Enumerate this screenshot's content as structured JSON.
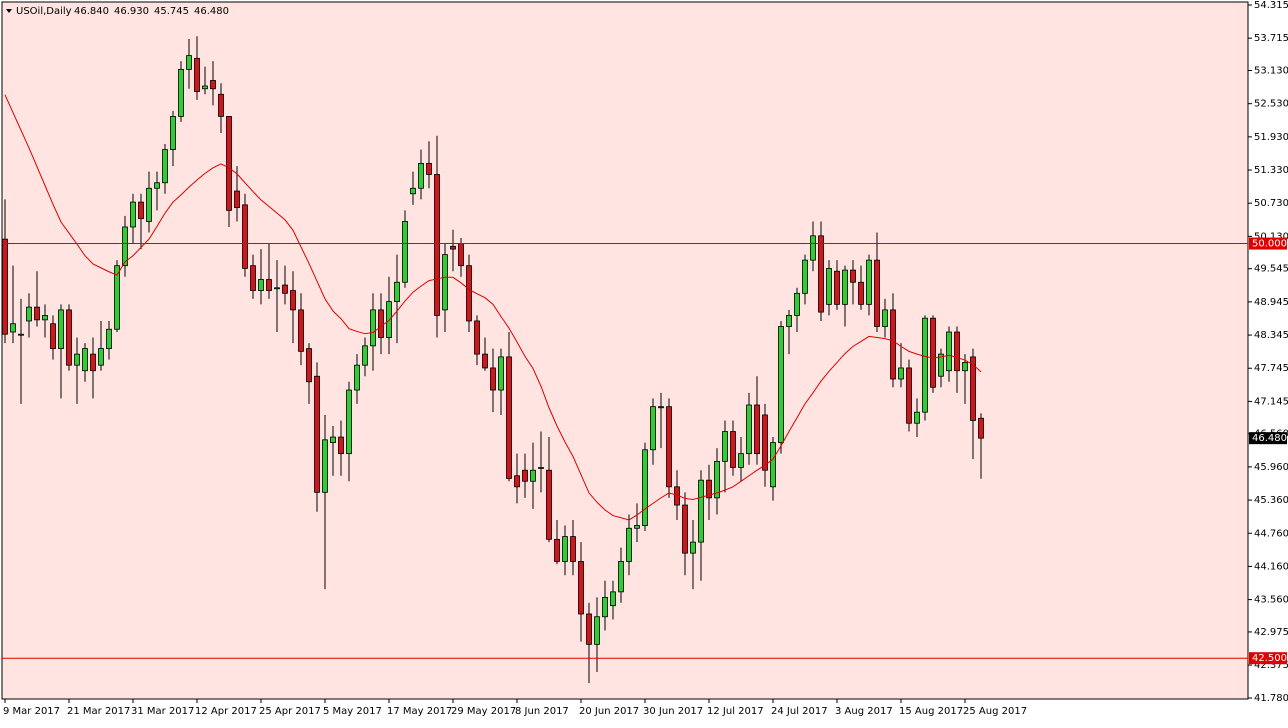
{
  "chart_data": {
    "type": "candlestick",
    "title": "USOil,Daily",
    "header_values": [
      "46.840",
      "46.930",
      "45.745",
      "46.480"
    ],
    "background": "#ffe4e1",
    "bull_color": "#32cd32",
    "bear_color": "#d0161b",
    "ylim": [
      41.78,
      54.315
    ],
    "yticks": [
      {
        "value": 54.315,
        "label": "54.315"
      },
      {
        "value": 53.715,
        "label": "53.715"
      },
      {
        "value": 53.13,
        "label": "53.130"
      },
      {
        "value": 52.53,
        "label": "52.530"
      },
      {
        "value": 51.93,
        "label": "51.930"
      },
      {
        "value": 51.33,
        "label": "51.330"
      },
      {
        "value": 50.73,
        "label": "50.730"
      },
      {
        "value": 50.13,
        "label": "50.130"
      },
      {
        "value": 49.545,
        "label": "49.545"
      },
      {
        "value": 48.945,
        "label": "48.945"
      },
      {
        "value": 48.345,
        "label": "48.345"
      },
      {
        "value": 47.745,
        "label": "47.745"
      },
      {
        "value": 47.145,
        "label": "47.145"
      },
      {
        "value": 46.56,
        "label": "46.560"
      },
      {
        "value": 45.96,
        "label": "45.960"
      },
      {
        "value": 45.36,
        "label": "45.360"
      },
      {
        "value": 44.76,
        "label": "44.760"
      },
      {
        "value": 44.16,
        "label": "44.160"
      },
      {
        "value": 43.56,
        "label": "43.560"
      },
      {
        "value": 42.975,
        "label": "42.975"
      },
      {
        "value": 42.375,
        "label": "42.375"
      },
      {
        "value": 41.78,
        "label": "41.780"
      }
    ],
    "levels": [
      {
        "value": 50,
        "label": "50.000",
        "color": "#e00000"
      },
      {
        "value": 42.5,
        "label": "42.500",
        "color": "#e00000"
      }
    ],
    "last_price": {
      "value": 46.48,
      "label": "46.480"
    },
    "categories": [
      "9 Mar 2017",
      null,
      null,
      null,
      null,
      null,
      null,
      null,
      "21 Mar 2017",
      null,
      null,
      null,
      null,
      null,
      null,
      null,
      "31 Mar 2017",
      null,
      null,
      null,
      null,
      null,
      null,
      null,
      "12 Apr 2017",
      null,
      null,
      null,
      null,
      null,
      null,
      null,
      "25 Apr 2017",
      null,
      null,
      null,
      null,
      null,
      null,
      null,
      "5 May 2017",
      null,
      null,
      null,
      null,
      null,
      null,
      null,
      "17 May 2017",
      null,
      null,
      null,
      null,
      null,
      null,
      null,
      "29 May 2017",
      null,
      null,
      null,
      null,
      null,
      null,
      null,
      "8 Jun 2017",
      null,
      null,
      null,
      null,
      null,
      null,
      null,
      "20 Jun 2017",
      null,
      null,
      null,
      null,
      null,
      null,
      null,
      "30 Jun 2017",
      null,
      null,
      null,
      null,
      null,
      null,
      null,
      "12 Jul 2017",
      null,
      null,
      null,
      null,
      null,
      null,
      null,
      "24 Jul 2017",
      null,
      null,
      null,
      null,
      null,
      null,
      null,
      "3 Aug 2017",
      null,
      null,
      null,
      null,
      null,
      null,
      null,
      "15 Aug 2017",
      null,
      null,
      null,
      null,
      null,
      null,
      null,
      "25 Aug 2017",
      null,
      null
    ],
    "open": [
      50.08,
      48.4,
      48.36,
      48.6,
      48.85,
      48.62,
      48.55,
      48.1,
      48.8,
      47.8,
      47.7,
      48.0,
      47.8,
      48.1,
      48.45,
      49.6,
      50.3,
      50.75,
      50.4,
      51.0,
      51.1,
      51.7,
      52.3,
      53.15,
      53.35,
      52.8,
      52.95,
      52.7,
      52.3,
      50.95,
      50.7,
      49.6,
      49.15,
      49.35,
      49.2,
      49.25,
      49.15,
      48.8,
      48.1,
      47.6,
      45.5,
      46.4,
      46.5,
      46.2,
      47.35,
      47.8,
      48.15,
      48.8,
      48.3,
      48.95,
      49.3,
      50.9,
      51.0,
      51.45,
      51.25,
      48.8,
      49.95,
      50.0,
      49.6,
      48.6,
      48.0,
      47.75,
      47.35,
      47.95,
      45.8,
      45.9,
      45.7,
      45.95,
      45.9,
      44.65,
      44.25,
      44.7,
      44.25,
      43.3,
      42.75,
      43.25,
      43.45,
      43.7,
      44.25,
      44.85,
      44.9,
      46.27,
      47.05,
      47.05,
      45.6,
      45.27,
      44.4,
      44.6,
      45.72,
      45.4,
      46.06,
      46.6,
      45.95,
      46.2,
      47.08,
      46.9,
      45.6,
      46.4,
      48.5,
      48.7,
      49.1,
      49.7,
      50.14,
      48.9,
      49.5,
      48.9,
      49.52,
      49.3,
      48.9,
      49.7,
      48.5,
      48.8,
      47.55,
      47.75,
      46.75,
      46.95,
      48.65,
      47.6,
      47.7,
      48.4,
      47.7,
      47.95,
      46.84
    ],
    "high": [
      50.8,
      49.6,
      49.0,
      49.1,
      49.5,
      48.9,
      48.7,
      48.9,
      48.9,
      48.3,
      48.2,
      48.3,
      48.6,
      48.6,
      49.7,
      50.5,
      50.9,
      50.9,
      51.3,
      51.3,
      51.8,
      52.4,
      53.3,
      53.7,
      53.75,
      53.2,
      53.3,
      52.9,
      52.3,
      51.4,
      50.9,
      49.8,
      49.9,
      50.0,
      49.7,
      49.6,
      49.5,
      49.1,
      48.2,
      47.85,
      46.9,
      46.7,
      46.8,
      47.5,
      48.0,
      48.3,
      49.1,
      49.1,
      49.4,
      49.8,
      50.6,
      51.3,
      51.7,
      51.85,
      51.95,
      50.0,
      50.25,
      50.1,
      49.8,
      48.7,
      48.3,
      48.1,
      48.1,
      48.4,
      46.2,
      46.2,
      46.4,
      46.6,
      46.5,
      45.0,
      44.9,
      45.0,
      44.6,
      43.5,
      43.6,
      43.9,
      43.9,
      44.5,
      45.1,
      45.3,
      46.4,
      47.2,
      47.3,
      47.2,
      45.9,
      45.5,
      45.0,
      45.9,
      46.0,
      46.3,
      46.8,
      46.8,
      46.5,
      47.3,
      47.6,
      47.1,
      46.5,
      48.6,
      48.8,
      49.2,
      49.8,
      50.4,
      50.4,
      49.7,
      49.7,
      49.6,
      49.7,
      49.6,
      49.8,
      50.2,
      49.0,
      49.1,
      48.2,
      47.9,
      47.2,
      48.7,
      48.7,
      48.1,
      48.5,
      48.5,
      48.0,
      48.1,
      46.93
    ],
    "low": [
      48.2,
      48.2,
      47.1,
      48.3,
      48.5,
      48.3,
      47.9,
      47.2,
      47.7,
      47.1,
      47.5,
      47.2,
      47.7,
      47.9,
      48.4,
      49.4,
      50.0,
      49.9,
      50.2,
      50.6,
      50.9,
      51.4,
      52.2,
      52.8,
      52.6,
      52.7,
      52.5,
      52.0,
      50.3,
      50.4,
      49.4,
      49.0,
      48.9,
      49.0,
      48.4,
      48.9,
      48.2,
      47.8,
      47.1,
      45.15,
      43.75,
      45.8,
      45.8,
      45.7,
      47.1,
      47.6,
      47.7,
      48.0,
      48.0,
      48.2,
      49.2,
      50.7,
      50.8,
      51.0,
      48.3,
      48.4,
      49.5,
      49.4,
      48.4,
      47.8,
      47.7,
      46.95,
      46.9,
      45.7,
      45.3,
      45.4,
      45.2,
      45.5,
      44.6,
      44.2,
      44.0,
      44.0,
      42.8,
      42.05,
      42.25,
      43.0,
      43.2,
      43.5,
      44.0,
      44.6,
      44.8,
      46.0,
      46.3,
      45.4,
      45.0,
      44.0,
      43.75,
      43.9,
      45.0,
      45.1,
      45.5,
      45.8,
      45.7,
      46.0,
      46.0,
      45.6,
      45.35,
      46.2,
      48.0,
      48.4,
      48.9,
      49.5,
      48.6,
      48.7,
      48.8,
      48.5,
      48.9,
      48.8,
      48.7,
      48.4,
      48.3,
      47.4,
      47.4,
      46.6,
      46.5,
      46.8,
      47.3,
      47.4,
      47.5,
      47.3,
      47.1,
      46.1,
      45.745
    ],
    "close": [
      48.36,
      48.55,
      48.36,
      48.85,
      48.62,
      48.7,
      48.1,
      48.8,
      47.8,
      48.0,
      48.1,
      47.7,
      48.1,
      48.45,
      49.6,
      50.3,
      50.75,
      50.45,
      51.0,
      51.1,
      51.7,
      52.3,
      53.15,
      53.4,
      52.75,
      52.85,
      52.8,
      52.3,
      50.6,
      50.65,
      49.55,
      49.15,
      49.35,
      49.15,
      49.2,
      49.1,
      48.8,
      48.05,
      47.5,
      45.5,
      46.45,
      46.5,
      46.2,
      47.35,
      47.8,
      48.15,
      48.8,
      48.3,
      48.95,
      49.3,
      50.4,
      51.0,
      51.45,
      51.25,
      48.7,
      49.8,
      49.9,
      49.6,
      48.6,
      48.0,
      47.75,
      47.35,
      47.95,
      45.75,
      45.6,
      45.7,
      45.9,
      45.95,
      44.65,
      44.25,
      44.7,
      44.25,
      43.3,
      42.75,
      43.25,
      43.6,
      43.7,
      44.25,
      44.85,
      44.9,
      46.27,
      47.05,
      47.03,
      45.6,
      45.27,
      44.4,
      44.6,
      45.72,
      45.4,
      46.06,
      46.6,
      45.95,
      46.2,
      47.08,
      46.2,
      45.9,
      46.4,
      48.5,
      48.7,
      49.1,
      49.7,
      50.14,
      48.76,
      49.55,
      48.9,
      49.52,
      49.3,
      48.9,
      49.7,
      48.5,
      48.8,
      47.55,
      47.75,
      46.75,
      46.95,
      48.65,
      47.4,
      48.0,
      48.4,
      47.7,
      47.85,
      46.8,
      46.48
    ],
    "ma": {
      "color": "#e00000",
      "values": [
        52.69,
        52.37,
        52.05,
        51.73,
        51.39,
        51.05,
        50.71,
        50.39,
        50.19,
        49.99,
        49.78,
        49.63,
        49.56,
        49.49,
        49.43,
        49.67,
        49.78,
        49.93,
        50.08,
        50.31,
        50.55,
        50.75,
        50.88,
        51.02,
        51.15,
        51.27,
        51.37,
        51.44,
        51.37,
        51.26,
        51.1,
        50.94,
        50.79,
        50.67,
        50.55,
        50.43,
        50.24,
        49.94,
        49.64,
        49.32,
        49.0,
        48.78,
        48.64,
        48.46,
        48.41,
        48.37,
        48.39,
        48.5,
        48.61,
        48.78,
        48.96,
        49.12,
        49.23,
        49.33,
        49.36,
        49.39,
        49.39,
        49.29,
        49.17,
        49.09,
        49.02,
        48.9,
        48.68,
        48.47,
        48.22,
        47.96,
        47.74,
        47.42,
        47.03,
        46.7,
        46.41,
        46.15,
        45.82,
        45.49,
        45.32,
        45.18,
        45.08,
        45.04,
        45.0,
        45.09,
        45.2,
        45.3,
        45.4,
        45.49,
        45.45,
        45.39,
        45.37,
        45.41,
        45.45,
        45.49,
        45.54,
        45.6,
        45.7,
        45.8,
        45.9,
        45.99,
        46.1,
        46.34,
        46.6,
        46.85,
        47.1,
        47.3,
        47.51,
        47.69,
        47.85,
        48.01,
        48.14,
        48.23,
        48.32,
        48.3,
        48.28,
        48.24,
        48.14,
        48.05,
        48.0,
        47.96,
        47.93,
        47.95,
        47.98,
        47.94,
        47.89,
        47.81,
        47.68
      ]
    }
  }
}
